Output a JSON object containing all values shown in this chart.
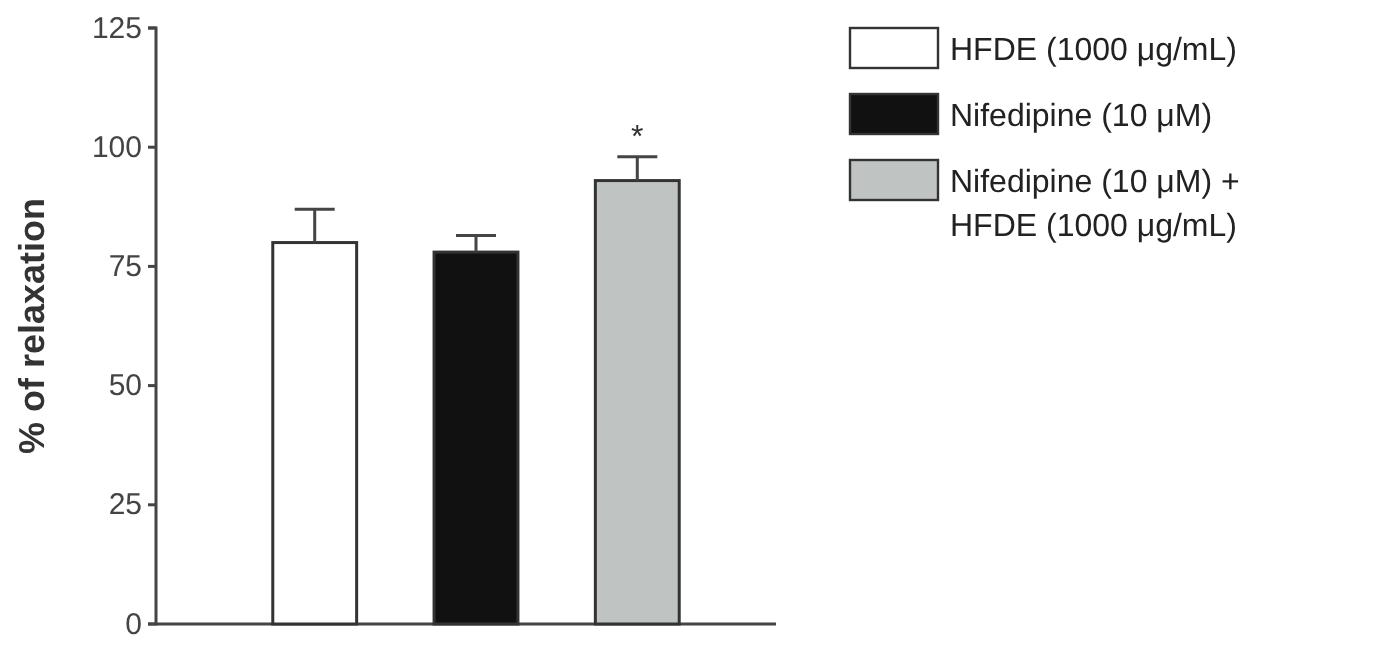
{
  "chart_data": {
    "type": "bar",
    "ylabel": "% of relaxation",
    "categories": [
      null,
      null,
      null
    ],
    "series": [
      {
        "name": "HFDE (1000 μg/mL)",
        "color": "#ffffff",
        "values": [
          80,
          null,
          null
        ],
        "errors": [
          7,
          null,
          null
        ]
      },
      {
        "name": "Nifedipine (10 μM)",
        "color": "#111111",
        "values": [
          null,
          78,
          null
        ],
        "errors": [
          null,
          3.5,
          null
        ]
      },
      {
        "name": "Nifedipine (10 μM) + HFDE (1000 μg/mL)",
        "color": "#bfc3c1",
        "values": [
          null,
          null,
          93
        ],
        "errors": [
          null,
          null,
          5
        ]
      }
    ],
    "ylim": [
      0,
      125
    ],
    "yticks": [
      0,
      25,
      50,
      75,
      100,
      125
    ],
    "grid": false,
    "legend": "right",
    "annotations": [
      {
        "text": "*",
        "y": 100
      }
    ]
  }
}
